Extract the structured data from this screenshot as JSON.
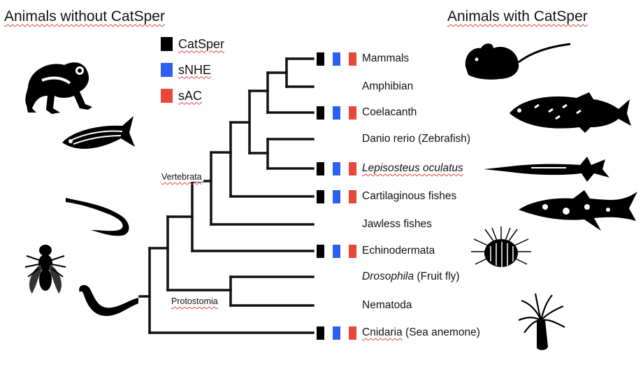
{
  "headings": {
    "left": "Animals without CatSper",
    "right": "Animals with CatSper"
  },
  "legend": [
    {
      "label": "CatSper",
      "color": "#000000"
    },
    {
      "label": "sNHE",
      "color": "#2f5ff0"
    },
    {
      "label": "sAC",
      "color": "#e8473a"
    }
  ],
  "clades": {
    "vertebrata": "Vertebrata",
    "protostomia": "Protostomia"
  },
  "taxa": [
    {
      "name": "Mammals",
      "italic_part": "",
      "rest": "",
      "catsper": true,
      "snhe": true,
      "sac": true
    },
    {
      "name": "Amphibian",
      "italic_part": "",
      "rest": "",
      "catsper": false,
      "snhe": false,
      "sac": false
    },
    {
      "name": "Coelacanth",
      "italic_part": "",
      "rest": "",
      "catsper": true,
      "snhe": true,
      "sac": true
    },
    {
      "name": "Danio rerio (Zebrafish)",
      "italic_part": "",
      "rest": "",
      "catsper": false,
      "snhe": false,
      "sac": false
    },
    {
      "name": "",
      "italic_part": "Lepisosteus oculatus",
      "rest": "",
      "catsper": true,
      "snhe": true,
      "sac": true
    },
    {
      "name": "Cartilaginous fishes",
      "italic_part": "",
      "rest": "",
      "catsper": true,
      "snhe": true,
      "sac": true
    },
    {
      "name": "Jawless fishes",
      "italic_part": "",
      "rest": "",
      "catsper": false,
      "snhe": false,
      "sac": false
    },
    {
      "name": "Echinodermata",
      "italic_part": "",
      "rest": "",
      "catsper": true,
      "snhe": true,
      "sac": true
    },
    {
      "name": "",
      "italic_part": "Drosophila",
      "rest": " (Fruit fly)",
      "catsper": false,
      "snhe": false,
      "sac": false
    },
    {
      "name": "Nematoda",
      "italic_part": "",
      "rest": "",
      "catsper": false,
      "snhe": false,
      "sac": false
    },
    {
      "name": "Cnidaria",
      "italic_part": "",
      "rest": " (Sea anemone)",
      "catsper": true,
      "snhe": true,
      "sac": true
    }
  ],
  "silhouettes": {
    "left": [
      "frog-icon",
      "zebrafish-icon",
      "lamprey-icon",
      "fruit-fly-icon",
      "nematode-icon"
    ],
    "right": [
      "mouse-icon",
      "coelacanth-icon",
      "gar-icon",
      "shark-icon",
      "sea-urchin-icon",
      "sea-anemone-icon"
    ]
  }
}
